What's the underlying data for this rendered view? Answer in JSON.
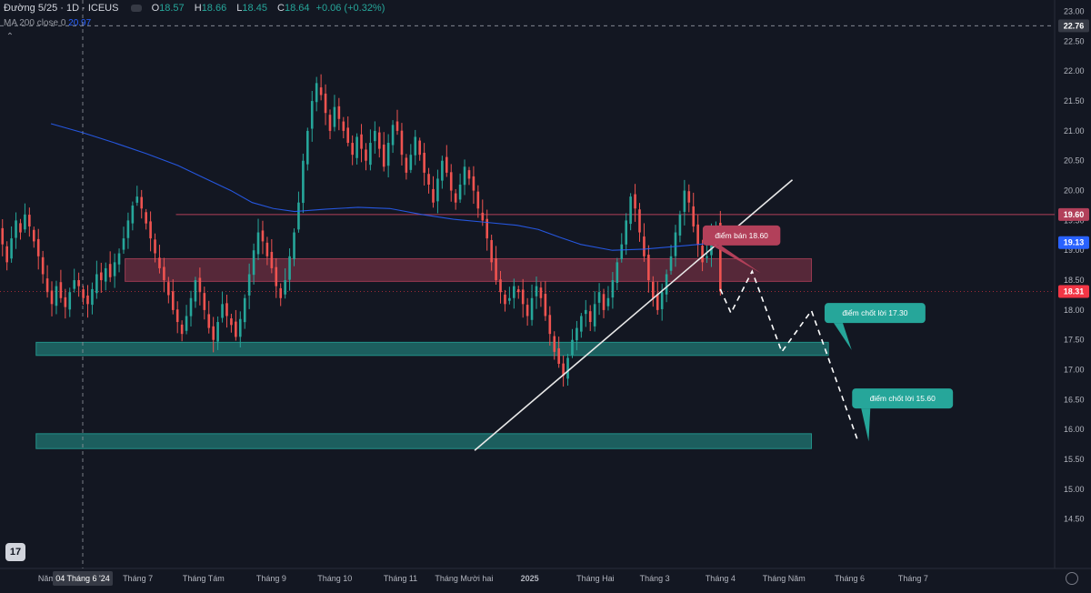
{
  "header": {
    "symbol": "Đường 5/25 · 1D · ICEUS",
    "o_label": "O",
    "o_value": "18.57",
    "h_label": "H",
    "h_value": "18.66",
    "l_label": "L",
    "l_value": "18.45",
    "c_label": "C",
    "c_value": "18.64",
    "change": "+0.06 (+0.32%)",
    "ma_label": "MA 200 close 0",
    "ma_value": "20.97"
  },
  "logo_text": "17",
  "chart_data": {
    "type": "candlestick",
    "title": "",
    "ylim": [
      14.1,
      23.1
    ],
    "y_ticks": [
      23.0,
      22.5,
      22.0,
      21.5,
      21.0,
      20.5,
      20.0,
      19.5,
      19.0,
      18.5,
      18.0,
      17.5,
      17.0,
      16.5,
      16.0,
      15.5,
      15.0,
      14.5
    ],
    "x_ticks": [
      {
        "label": "Năm",
        "day": -17
      },
      {
        "label": "04 Tháng 6 '24",
        "day": 0
      },
      {
        "label": "Tháng 7",
        "day": 26
      },
      {
        "label": "Tháng Tám",
        "day": 57
      },
      {
        "label": "Tháng 9",
        "day": 89
      },
      {
        "label": "Tháng 10",
        "day": 119
      },
      {
        "label": "Tháng 11",
        "day": 150
      },
      {
        "label": "Tháng Mười hai",
        "day": 180
      },
      {
        "label": "2025",
        "day": 211
      },
      {
        "label": "Tháng Hai",
        "day": 242
      },
      {
        "label": "Tháng 3",
        "day": 270
      },
      {
        "label": "Tháng 4",
        "day": 301
      },
      {
        "label": "Tháng Năm",
        "day": 331
      },
      {
        "label": "Tháng 6",
        "day": 362
      },
      {
        "label": "Tháng 7",
        "day": 392
      }
    ],
    "crosshair": {
      "day": 0,
      "price": 22.76
    },
    "price_labels": [
      {
        "value": "22.76",
        "kind": "crosshair"
      },
      {
        "value": "19.60",
        "kind": "resistance"
      },
      {
        "value": "19.13",
        "kind": "ma"
      },
      {
        "value": "18.31",
        "kind": "last"
      }
    ],
    "closes": [
      19.35,
      19.1,
      18.8,
      19.2,
      19.5,
      19.3,
      19.6,
      19.4,
      19.15,
      18.9,
      18.6,
      18.3,
      18.1,
      18.4,
      18.2,
      18.05,
      18.3,
      18.5,
      18.4,
      18.2,
      18.1,
      18.35,
      18.6,
      18.5,
      18.7,
      18.55,
      18.8,
      18.95,
      19.2,
      19.5,
      19.75,
      19.9,
      19.7,
      19.45,
      19.2,
      18.95,
      18.7,
      18.5,
      18.25,
      18.0,
      17.8,
      17.6,
      17.9,
      18.2,
      18.5,
      18.3,
      18.0,
      17.7,
      17.5,
      17.8,
      18.1,
      17.9,
      17.75,
      17.55,
      17.85,
      18.2,
      18.6,
      19.0,
      19.3,
      19.15,
      18.9,
      18.7,
      18.4,
      18.2,
      18.5,
      18.9,
      19.3,
      19.8,
      20.5,
      21.0,
      21.5,
      21.8,
      21.6,
      21.3,
      21.0,
      21.4,
      21.2,
      21.0,
      20.8,
      20.6,
      20.9,
      20.7,
      20.5,
      20.8,
      21.0,
      20.7,
      20.4,
      20.8,
      21.1,
      21.0,
      20.6,
      20.3,
      20.6,
      20.9,
      20.6,
      20.3,
      20.1,
      19.8,
      20.2,
      20.5,
      20.3,
      20.0,
      19.8,
      20.1,
      20.4,
      20.2,
      20.0,
      19.7,
      19.5,
      19.2,
      18.8,
      18.5,
      18.3,
      18.1,
      18.2,
      18.4,
      18.3,
      18.1,
      17.9,
      18.2,
      18.4,
      18.2,
      17.9,
      17.6,
      17.3,
      17.1,
      16.9,
      17.2,
      17.5,
      17.7,
      17.9,
      18.0,
      17.8,
      18.1,
      18.3,
      18.0,
      18.2,
      18.5,
      18.8,
      19.1,
      19.5,
      19.9,
      19.7,
      19.3,
      18.9,
      18.5,
      18.2,
      18.0,
      18.3,
      18.6,
      18.9,
      19.3,
      19.6,
      20.0,
      19.8,
      19.4,
      19.1,
      18.8,
      18.9,
      19.3,
      19.4,
      18.31
    ],
    "ma200": [
      [
        -15,
        21.12
      ],
      [
        0,
        20.97
      ],
      [
        15,
        20.8
      ],
      [
        30,
        20.62
      ],
      [
        45,
        20.42
      ],
      [
        55,
        20.25
      ],
      [
        70,
        20.0
      ],
      [
        80,
        19.8
      ],
      [
        90,
        19.7
      ],
      [
        100,
        19.65
      ],
      [
        115,
        19.69
      ],
      [
        130,
        19.72
      ],
      [
        145,
        19.7
      ],
      [
        160,
        19.6
      ],
      [
        175,
        19.52
      ],
      [
        190,
        19.47
      ],
      [
        205,
        19.42
      ],
      [
        215,
        19.35
      ],
      [
        225,
        19.22
      ],
      [
        235,
        19.1
      ],
      [
        250,
        19.0
      ],
      [
        265,
        19.02
      ],
      [
        285,
        19.08
      ],
      [
        300,
        19.13
      ]
    ],
    "zones": [
      {
        "name": "sell-zone",
        "top": 18.86,
        "bottom": 18.48,
        "from_day": 20,
        "to_day": 344,
        "color": "#b2405a"
      },
      {
        "name": "tp1-zone",
        "top": 17.46,
        "bottom": 17.24,
        "from_day": -22,
        "to_day": 352,
        "color": "#26a69a"
      },
      {
        "name": "tp2-zone",
        "top": 15.93,
        "bottom": 15.68,
        "from_day": -22,
        "to_day": 344,
        "color": "#26a69a"
      }
    ],
    "resistance_line": {
      "value": 19.6,
      "from_day": 44,
      "to_day": 420
    },
    "trendline": {
      "from": [
        185,
        15.65
      ],
      "to": [
        335,
        20.18
      ]
    },
    "projection": [
      [
        301,
        18.35
      ],
      [
        306,
        17.95
      ],
      [
        316,
        18.65
      ],
      [
        330,
        17.3
      ],
      [
        344,
        17.99
      ],
      [
        366,
        15.8
      ]
    ],
    "callouts": [
      {
        "text": "điểm bán 18.60",
        "color": "#b2405a",
        "box_day": 311,
        "box_price": 19.25,
        "tip": [
          320,
          18.62
        ]
      },
      {
        "text": "điểm chốt lời 17.30",
        "color": "#26a69a",
        "box_day": 374,
        "box_price": 17.95,
        "tip": [
          363,
          17.33
        ]
      },
      {
        "text": "điểm chốt lời 15.60",
        "color": "#26a69a",
        "box_day": 387,
        "box_price": 16.52,
        "tip": [
          371,
          15.8
        ]
      }
    ]
  }
}
